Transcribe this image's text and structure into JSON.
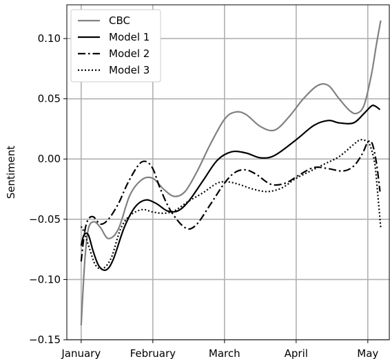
{
  "chart_data": {
    "type": "line",
    "title": "",
    "xlabel": "",
    "ylabel": "Sentiment",
    "x_tick_labels": [
      "January",
      "February",
      "March",
      "April",
      "May"
    ],
    "x_tick_positions": [
      0,
      1,
      2,
      3,
      4
    ],
    "xlim": [
      -0.2,
      4.3
    ],
    "ylim": [
      -0.15,
      0.128
    ],
    "y_ticks": [
      -0.15,
      -0.1,
      -0.05,
      0.0,
      0.05,
      0.1
    ],
    "y_tick_labels": [
      "−0.15",
      "−0.10",
      "−0.05",
      "0.00",
      "0.05",
      "0.10"
    ],
    "grid": true,
    "legend_position": "top-left",
    "series": [
      {
        "name": "CBC",
        "color": "#808080",
        "dash": "solid",
        "x": [
          0.0,
          0.05,
          0.1,
          0.18,
          0.27,
          0.38,
          0.52,
          0.68,
          0.85,
          1.0,
          1.15,
          1.3,
          1.45,
          1.62,
          1.8,
          2.0,
          2.15,
          2.3,
          2.5,
          2.7,
          2.9,
          3.1,
          3.3,
          3.45,
          3.6,
          3.75,
          3.85,
          3.95,
          4.05,
          4.12,
          4.18
        ],
        "y": [
          -0.138,
          -0.085,
          -0.058,
          -0.052,
          -0.057,
          -0.066,
          -0.058,
          -0.03,
          -0.017,
          -0.016,
          -0.025,
          -0.031,
          -0.027,
          -0.01,
          0.012,
          0.033,
          0.039,
          0.037,
          0.027,
          0.024,
          0.035,
          0.05,
          0.061,
          0.061,
          0.05,
          0.04,
          0.038,
          0.045,
          0.07,
          0.095,
          0.115
        ]
      },
      {
        "name": "Model 1",
        "color": "#000000",
        "dash": "solid",
        "x": [
          0.0,
          0.04,
          0.1,
          0.17,
          0.25,
          0.35,
          0.45,
          0.6,
          0.75,
          0.9,
          1.05,
          1.2,
          1.35,
          1.5,
          1.7,
          1.9,
          2.1,
          2.3,
          2.5,
          2.7,
          3.0,
          3.25,
          3.45,
          3.6,
          3.8,
          3.95,
          4.05,
          4.1,
          4.17
        ],
        "y": [
          -0.072,
          -0.063,
          -0.063,
          -0.077,
          -0.089,
          -0.092,
          -0.083,
          -0.057,
          -0.04,
          -0.034,
          -0.037,
          -0.043,
          -0.043,
          -0.035,
          -0.018,
          -0.001,
          0.006,
          0.005,
          0.001,
          0.003,
          0.016,
          0.028,
          0.032,
          0.03,
          0.03,
          0.038,
          0.044,
          0.044,
          0.041
        ]
      },
      {
        "name": "Model 2",
        "color": "#000000",
        "dash": "dashdot",
        "x": [
          0.0,
          0.05,
          0.1,
          0.17,
          0.27,
          0.38,
          0.52,
          0.65,
          0.8,
          0.9,
          1.0,
          1.1,
          1.25,
          1.45,
          1.6,
          1.8,
          2.0,
          2.15,
          2.3,
          2.45,
          2.65,
          2.85,
          3.05,
          3.25,
          3.45,
          3.65,
          3.8,
          3.92,
          4.0,
          4.06,
          4.12,
          4.17
        ],
        "y": [
          -0.085,
          -0.06,
          -0.05,
          -0.048,
          -0.054,
          -0.05,
          -0.037,
          -0.02,
          -0.005,
          -0.002,
          -0.008,
          -0.024,
          -0.043,
          -0.057,
          -0.055,
          -0.038,
          -0.02,
          -0.011,
          -0.009,
          -0.013,
          -0.021,
          -0.02,
          -0.013,
          -0.007,
          -0.008,
          -0.01,
          -0.006,
          0.004,
          0.014,
          0.013,
          -0.003,
          -0.027
        ]
      },
      {
        "name": "Model 3",
        "color": "#000000",
        "dash": "dotted",
        "x": [
          0.0,
          0.05,
          0.12,
          0.2,
          0.3,
          0.42,
          0.55,
          0.68,
          0.85,
          1.0,
          1.15,
          1.3,
          1.5,
          1.7,
          1.9,
          2.05,
          2.2,
          2.4,
          2.6,
          2.8,
          3.0,
          3.2,
          3.4,
          3.6,
          3.8,
          3.9,
          4.0,
          4.05,
          4.1,
          4.14,
          4.18
        ],
        "y": [
          -0.056,
          -0.062,
          -0.075,
          -0.088,
          -0.091,
          -0.082,
          -0.058,
          -0.047,
          -0.042,
          -0.044,
          -0.045,
          -0.043,
          -0.035,
          -0.028,
          -0.02,
          -0.019,
          -0.021,
          -0.025,
          -0.027,
          -0.024,
          -0.016,
          -0.01,
          -0.004,
          0.002,
          0.012,
          0.016,
          0.014,
          0.008,
          -0.005,
          -0.03,
          -0.057
        ]
      }
    ]
  }
}
